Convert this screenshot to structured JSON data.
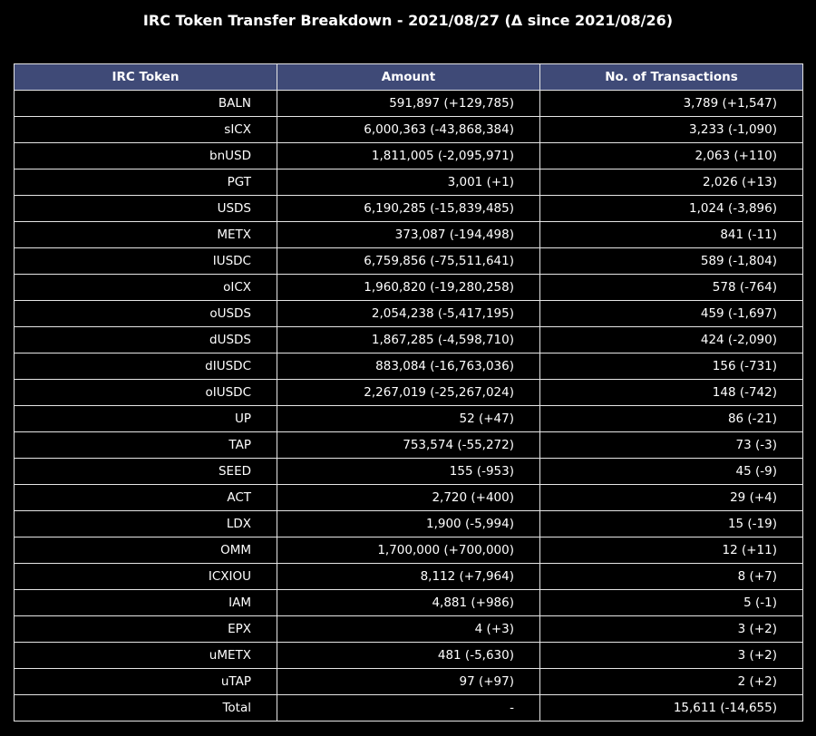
{
  "title": "IRC Token Transfer Breakdown - 2021/08/27 (Δ since 2021/08/26)",
  "colors": {
    "background": "#000000",
    "header_background": "#3f4a77",
    "border": "#e6e6e6",
    "text": "#ffffff"
  },
  "chart_data": {
    "type": "table",
    "title": "IRC Token Transfer Breakdown - 2021/08/27 (Δ since 2021/08/26)",
    "columns": [
      "IRC Token",
      "Amount",
      "No. of Transactions"
    ],
    "rows": [
      [
        "BALN",
        "591,897 (+129,785)",
        "3,789 (+1,547)"
      ],
      [
        "sICX",
        "6,000,363 (-43,868,384)",
        "3,233 (-1,090)"
      ],
      [
        "bnUSD",
        "1,811,005 (-2,095,971)",
        "2,063 (+110)"
      ],
      [
        "PGT",
        "3,001 (+1)",
        "2,026 (+13)"
      ],
      [
        "USDS",
        "6,190,285 (-15,839,485)",
        "1,024 (-3,896)"
      ],
      [
        "METX",
        "373,087 (-194,498)",
        "841 (-11)"
      ],
      [
        "IUSDC",
        "6,759,856 (-75,511,641)",
        "589 (-1,804)"
      ],
      [
        "oICX",
        "1,960,820 (-19,280,258)",
        "578 (-764)"
      ],
      [
        "oUSDS",
        "2,054,238 (-5,417,195)",
        "459 (-1,697)"
      ],
      [
        "dUSDS",
        "1,867,285 (-4,598,710)",
        "424 (-2,090)"
      ],
      [
        "dIUSDC",
        "883,084 (-16,763,036)",
        "156 (-731)"
      ],
      [
        "oIUSDC",
        "2,267,019 (-25,267,024)",
        "148 (-742)"
      ],
      [
        "UP",
        "52 (+47)",
        "86 (-21)"
      ],
      [
        "TAP",
        "753,574 (-55,272)",
        "73 (-3)"
      ],
      [
        "SEED",
        "155 (-953)",
        "45 (-9)"
      ],
      [
        "ACT",
        "2,720 (+400)",
        "29 (+4)"
      ],
      [
        "LDX",
        "1,900 (-5,994)",
        "15 (-19)"
      ],
      [
        "OMM",
        "1,700,000 (+700,000)",
        "12 (+11)"
      ],
      [
        "ICXIOU",
        "8,112 (+7,964)",
        "8 (+7)"
      ],
      [
        "IAM",
        "4,881 (+986)",
        "5 (-1)"
      ],
      [
        "EPX",
        "4 (+3)",
        "3 (+2)"
      ],
      [
        "uMETX",
        "481 (-5,630)",
        "3 (+2)"
      ],
      [
        "uTAP",
        "97 (+97)",
        "2 (+2)"
      ],
      [
        "Total",
        "-",
        "15,611 (-14,655)"
      ]
    ]
  }
}
